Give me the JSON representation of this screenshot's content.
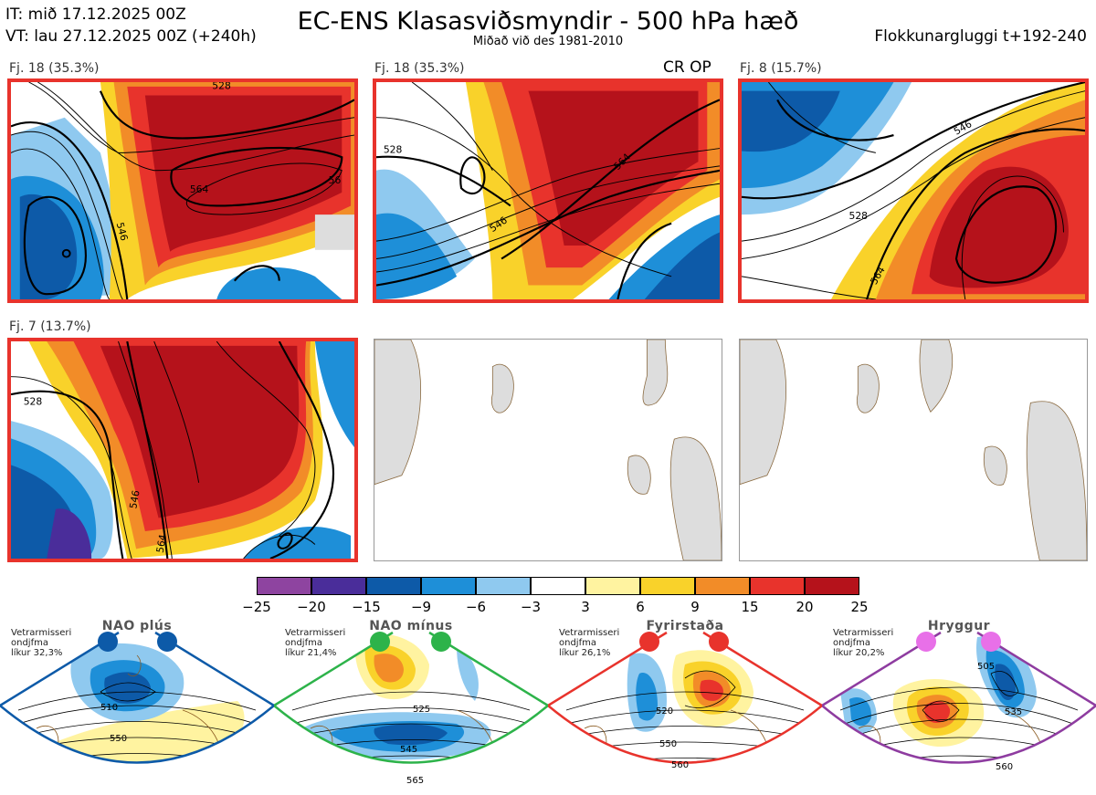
{
  "header": {
    "it_line": "IT: mið 17.12.2025 00Z",
    "vt_line": "VT: lau 27.12.2025 00Z  (+240h)",
    "title": "EC-ENS Klasasviðsmyndir - 500 hPa hæð",
    "subtitle": "Miðað við des 1981-2010",
    "window": "Flokkunargluggi t+192-240"
  },
  "panels": [
    {
      "label": "Fj. 18 (35.3%)",
      "extra": "",
      "contours": [
        "546",
        "564",
        "56",
        "528"
      ]
    },
    {
      "label": "Fj. 18 (35.3%)",
      "extra": "CR OP",
      "contours": [
        "528",
        "546",
        "564"
      ]
    },
    {
      "label": "Fj. 8 (15.7%)",
      "extra": "",
      "contours": [
        "528",
        "546",
        "564"
      ]
    },
    {
      "label": "Fj. 7 (13.7%)",
      "extra": "",
      "contours": [
        "528",
        "546",
        "564"
      ]
    }
  ],
  "colorbar": {
    "ticks": [
      "−25",
      "−20",
      "−15",
      "−9",
      "−6",
      "−3",
      "3",
      "6",
      "9",
      "15",
      "20",
      "25"
    ],
    "colors": [
      "#8e44a0",
      "#4a2d9a",
      "#0d5aa8",
      "#1e8fd8",
      "#8fc9ef",
      "#ffffff",
      "#fff3a0",
      "#f9d22a",
      "#f28c28",
      "#e8332c",
      "#b5121b"
    ]
  },
  "regimes": [
    {
      "name": "NAO plús",
      "prob1": "Vetrarmisseri",
      "prob2": "ondjfma",
      "prob3": "líkur 32,3%",
      "color": "#0d5aa8",
      "labels": [
        "510",
        "550"
      ]
    },
    {
      "name": "NAO mínus",
      "prob1": "Vetrarmisseri",
      "prob2": "ondjfma",
      "prob3": "líkur 21,4%",
      "color": "#2db34a",
      "labels": [
        "525",
        "545",
        "565"
      ]
    },
    {
      "name": "Fyrirstaða",
      "prob1": "Vetrarmisseri",
      "prob2": "ondjfma",
      "prob3": "líkur 26,1%",
      "color": "#e8332c",
      "labels": [
        "520",
        "550",
        "560"
      ]
    },
    {
      "name": "Hryggur",
      "prob1": "Vetrarmisseri",
      "prob2": "ondjfma",
      "prob3": "líkur 20,2%",
      "color": "#e870e8",
      "labels": [
        "505",
        "535",
        "560"
      ]
    }
  ]
}
